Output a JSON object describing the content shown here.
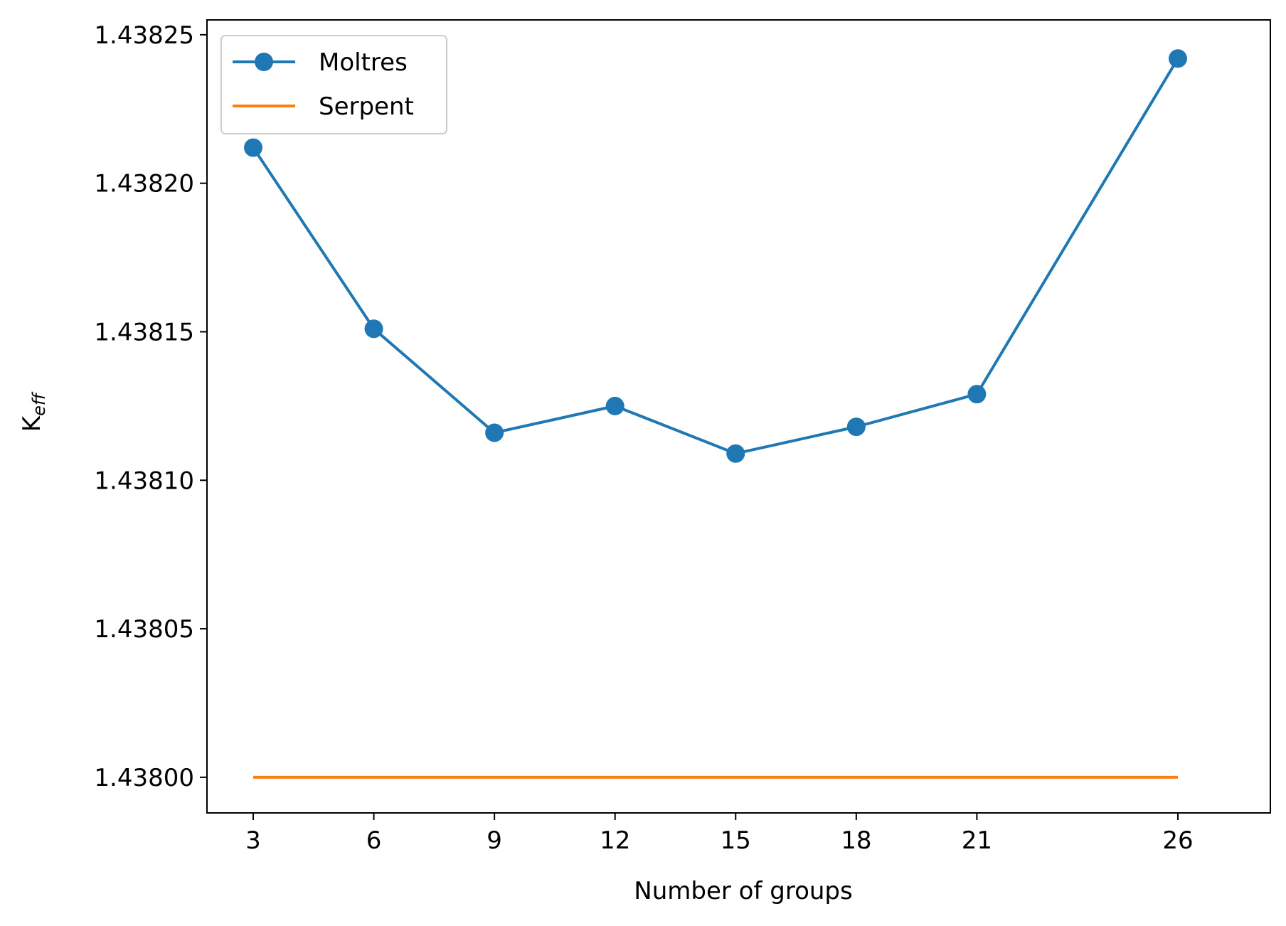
{
  "chart_data": {
    "type": "line",
    "title": "",
    "xlabel": "Number of groups",
    "ylabel": "K",
    "ylabel_subscript": "eff",
    "x": [
      3,
      6,
      9,
      12,
      15,
      18,
      21,
      26
    ],
    "x_ticks": [
      3,
      6,
      9,
      12,
      15,
      18,
      21,
      26
    ],
    "x_tick_labels": [
      "3",
      "6",
      "9",
      "12",
      "15",
      "18",
      "21",
      "26"
    ],
    "xlim": [
      1.85,
      28.3
    ],
    "y_ticks": [
      1.438,
      1.43805,
      1.4381,
      1.43815,
      1.4382,
      1.43825
    ],
    "y_tick_labels": [
      "1.43800",
      "1.43805",
      "1.43810",
      "1.43815",
      "1.43820",
      "1.43825"
    ],
    "ylim": [
      1.437988,
      1.438255
    ],
    "grid": false,
    "legend_position": "top-left",
    "series": [
      {
        "name": "Moltres",
        "color": "#1f77b4",
        "marker": "circle",
        "values": [
          1.438212,
          1.438151,
          1.438116,
          1.438125,
          1.438109,
          1.438118,
          1.438129,
          1.438242
        ]
      },
      {
        "name": "Serpent",
        "color": "#ff7f0e",
        "marker": "none",
        "values": [
          1.438,
          1.438,
          1.438,
          1.438,
          1.438,
          1.438,
          1.438,
          1.438
        ]
      }
    ]
  }
}
